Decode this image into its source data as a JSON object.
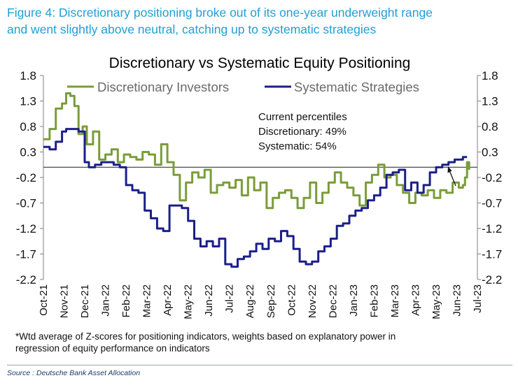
{
  "figure_title": {
    "line1": "Figure 4: Discretionary positioning broke out of its one-year underweight range",
    "line2": "and went slightly above neutral, catching up to systematic strategies"
  },
  "footnote": {
    "line1": "*Wtd average of Z-scores for positioning indicators, weights based on explanatory power in",
    "line2": "regression of equity performance on indicators"
  },
  "source": "Source : Deutsche Bank Asset Allocation",
  "colors": {
    "discretionary": "#7a9c3a",
    "systematic": "#1b1f8a",
    "zero_line": "#4d4d4d",
    "title_accent": "#1fa0d6"
  },
  "chart_data": {
    "type": "line",
    "title": "Discretionary  vs Systematic Equity Positioning",
    "xlabel": "",
    "ylabel": "",
    "ylim": [
      -2.2,
      1.8
    ],
    "yticks": [
      "1.8",
      "1.3",
      "0.8",
      "0.3",
      "-0.2",
      "-0.7",
      "-1.2",
      "-1.7",
      "-2.2"
    ],
    "ytick_values": [
      1.8,
      1.3,
      0.8,
      0.3,
      -0.2,
      -0.7,
      -1.2,
      -1.7,
      -2.2
    ],
    "xlim": [
      0,
      21
    ],
    "x_tick_labels": [
      "Oct-21",
      "Nov-21",
      "Dec-21",
      "Jan-22",
      "Feb-22",
      "Mar-22",
      "Apr-22",
      "May-22",
      "Jun-22",
      "Jul-22",
      "Aug-22",
      "Sep-22",
      "Oct-22",
      "Nov-22",
      "Dec-22",
      "Jan-23",
      "Feb-23",
      "Mar-23",
      "Apr-23",
      "May-23",
      "Jun-23",
      "Jul-23"
    ],
    "x_tick_values": [
      0,
      1,
      2,
      3,
      4,
      5,
      6,
      7,
      8,
      9,
      10,
      11,
      12,
      13,
      14,
      15,
      16,
      17,
      18,
      19,
      20,
      21
    ],
    "legend": {
      "placement": "top-left",
      "entries": [
        "Discretionary Investors",
        "Systematic Strategies"
      ]
    },
    "annotation": {
      "line1": "Current percentiles",
      "line2": "Discretionary: 49%",
      "line3": "Systematic: 54%"
    },
    "reference_line": 0,
    "series": [
      {
        "name": "Discretionary Investors",
        "x": [
          0,
          0.3,
          0.6,
          0.9,
          1.1,
          1.3,
          1.5,
          1.7,
          1.9,
          2.1,
          2.4,
          2.7,
          3.0,
          3.3,
          3.6,
          3.9,
          4.2,
          4.5,
          4.8,
          5.1,
          5.4,
          5.7,
          6.0,
          6.3,
          6.6,
          6.9,
          7.2,
          7.5,
          7.8,
          8.1,
          8.4,
          8.7,
          9.0,
          9.3,
          9.6,
          9.9,
          10.2,
          10.5,
          10.8,
          11.1,
          11.4,
          11.7,
          12.0,
          12.3,
          12.6,
          12.9,
          13.2,
          13.5,
          13.8,
          14.1,
          14.4,
          14.7,
          15.0,
          15.3,
          15.6,
          15.9,
          16.2,
          16.5,
          16.8,
          17.1,
          17.4,
          17.7,
          18.0,
          18.3,
          18.6,
          18.9,
          19.2,
          19.5,
          19.8,
          20.1,
          20.3,
          20.4,
          20.5,
          20.6
        ],
        "values": [
          0.55,
          0.75,
          1.15,
          1.25,
          1.45,
          1.4,
          1.2,
          0.65,
          0.8,
          0.45,
          0.7,
          0.15,
          0.25,
          0.35,
          0.1,
          0.25,
          0.2,
          0.15,
          0.3,
          0.25,
          0.05,
          0.45,
          0.1,
          -0.15,
          -0.65,
          -0.3,
          -0.1,
          -0.2,
          -0.05,
          -0.5,
          -0.35,
          -0.3,
          -0.4,
          -0.25,
          -0.55,
          -0.2,
          -0.45,
          -0.3,
          -0.8,
          -0.6,
          -0.5,
          -0.45,
          -0.6,
          -0.8,
          -0.6,
          -0.3,
          -0.7,
          -0.5,
          -0.3,
          -0.1,
          -0.3,
          -0.4,
          -0.55,
          -0.75,
          -0.3,
          -0.15,
          0.05,
          -0.2,
          -0.15,
          -0.35,
          -0.5,
          -0.7,
          -0.5,
          -0.55,
          -0.45,
          -0.6,
          -0.45,
          -0.5,
          -0.3,
          -0.4,
          -0.35,
          -0.2,
          0.1,
          -0.05
        ]
      },
      {
        "name": "Systematic Strategies",
        "x": [
          0,
          0.3,
          0.6,
          0.9,
          1.1,
          1.4,
          1.7,
          2.0,
          2.2,
          2.5,
          2.8,
          3.1,
          3.4,
          3.7,
          4.0,
          4.3,
          4.6,
          4.9,
          5.2,
          5.5,
          5.8,
          6.1,
          6.4,
          6.7,
          7.0,
          7.3,
          7.6,
          7.9,
          8.2,
          8.5,
          8.8,
          9.1,
          9.4,
          9.7,
          10.0,
          10.3,
          10.6,
          10.9,
          11.2,
          11.5,
          11.8,
          12.1,
          12.4,
          12.7,
          13.0,
          13.3,
          13.6,
          13.9,
          14.2,
          14.5,
          14.8,
          15.1,
          15.4,
          15.7,
          16.0,
          16.3,
          16.6,
          16.9,
          17.2,
          17.5,
          17.8,
          18.1,
          18.4,
          18.7,
          19.0,
          19.3,
          19.6,
          19.9,
          20.1,
          20.3,
          20.5
        ],
        "values": [
          0.4,
          0.35,
          0.5,
          0.7,
          0.75,
          0.75,
          0.7,
          0.1,
          0.0,
          0.05,
          0.1,
          0.1,
          0.05,
          0.0,
          -0.35,
          -0.45,
          -0.5,
          -0.85,
          -1.0,
          -1.2,
          -1.25,
          -0.75,
          -0.75,
          -0.8,
          -1.05,
          -1.4,
          -1.55,
          -1.45,
          -1.55,
          -1.4,
          -1.9,
          -1.95,
          -1.8,
          -1.75,
          -1.65,
          -1.5,
          -1.6,
          -1.4,
          -1.45,
          -1.25,
          -1.35,
          -1.6,
          -1.85,
          -1.9,
          -1.85,
          -1.65,
          -1.55,
          -1.4,
          -1.15,
          -1.1,
          -0.95,
          -0.85,
          -0.8,
          -0.65,
          -0.55,
          -0.4,
          -0.15,
          -0.1,
          -0.05,
          -0.45,
          -0.3,
          -0.5,
          -0.35,
          -0.1,
          0.0,
          0.05,
          0.1,
          0.15,
          0.15,
          0.2,
          0.2
        ]
      }
    ]
  }
}
